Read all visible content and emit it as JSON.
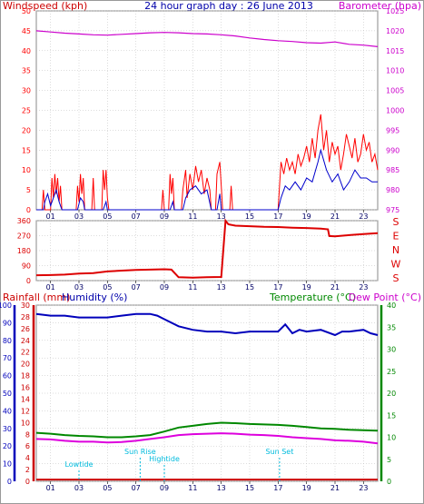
{
  "header": {
    "left_label": "Windspeed (kph)",
    "center_title": "24 hour graph day : 26 June 2013",
    "right_label": "Barometer (hpa)"
  },
  "colors": {
    "wind": "#ff0000",
    "gust_avg": "#0000cc",
    "barometer": "#cc00cc",
    "direction": "#dd0000",
    "humidity": "#0000bb",
    "temperature": "#008800",
    "dewpoint": "#dd00dd",
    "rain": "#cc0000",
    "astro": "#00bbdd",
    "grid": "#bbbbbb"
  },
  "x_ticks": [
    "01",
    "03",
    "05",
    "07",
    "09",
    "11",
    "13",
    "15",
    "17",
    "19",
    "21",
    "23"
  ],
  "chart_data": [
    {
      "type": "line",
      "name": "wind-barometer",
      "left_ticks": [
        "0",
        "5",
        "10",
        "15",
        "20",
        "25",
        "30",
        "35",
        "40",
        "45",
        "50"
      ],
      "right_ticks": [
        "975",
        "980",
        "985",
        "990",
        "995",
        "1000",
        "1005",
        "1010",
        "1015",
        "1020",
        "1025"
      ],
      "ylim_left": [
        0,
        50
      ],
      "ylim_right": [
        975,
        1025
      ],
      "xlim": [
        0,
        24
      ],
      "barometer": [
        [
          0,
          1020.0
        ],
        [
          1,
          1019.7
        ],
        [
          2,
          1019.4
        ],
        [
          3,
          1019.2
        ],
        [
          4,
          1019.0
        ],
        [
          5,
          1018.9
        ],
        [
          6,
          1019.1
        ],
        [
          7,
          1019.3
        ],
        [
          8,
          1019.5
        ],
        [
          9,
          1019.6
        ],
        [
          10,
          1019.5
        ],
        [
          11,
          1019.3
        ],
        [
          12,
          1019.2
        ],
        [
          13,
          1019.0
        ],
        [
          14,
          1018.7
        ],
        [
          15,
          1018.2
        ],
        [
          16,
          1017.8
        ],
        [
          17,
          1017.5
        ],
        [
          18,
          1017.3
        ],
        [
          19,
          1017.0
        ],
        [
          20,
          1016.9
        ],
        [
          21,
          1017.2
        ],
        [
          22,
          1016.6
        ],
        [
          23,
          1016.4
        ],
        [
          24,
          1016.0
        ]
      ],
      "wind_speed": [
        [
          0,
          0
        ],
        [
          0.4,
          0
        ],
        [
          0.5,
          5
        ],
        [
          0.6,
          0
        ],
        [
          1.0,
          0
        ],
        [
          1.1,
          8
        ],
        [
          1.2,
          3
        ],
        [
          1.3,
          9
        ],
        [
          1.4,
          4
        ],
        [
          1.5,
          8
        ],
        [
          1.6,
          2
        ],
        [
          1.7,
          6
        ],
        [
          1.8,
          0
        ],
        [
          2.8,
          0
        ],
        [
          2.9,
          6
        ],
        [
          3.0,
          2
        ],
        [
          3.1,
          9
        ],
        [
          3.2,
          4
        ],
        [
          3.3,
          8
        ],
        [
          3.4,
          0
        ],
        [
          3.9,
          0
        ],
        [
          4.0,
          8
        ],
        [
          4.1,
          0
        ],
        [
          4.6,
          0
        ],
        [
          4.7,
          10
        ],
        [
          4.8,
          5
        ],
        [
          4.9,
          10
        ],
        [
          5.0,
          3
        ],
        [
          5.1,
          0
        ],
        [
          8.8,
          0
        ],
        [
          8.9,
          5
        ],
        [
          9.0,
          0
        ],
        [
          9.3,
          0
        ],
        [
          9.4,
          9
        ],
        [
          9.5,
          4
        ],
        [
          9.6,
          8
        ],
        [
          9.7,
          0
        ],
        [
          10.2,
          0
        ],
        [
          10.3,
          5
        ],
        [
          10.5,
          10
        ],
        [
          10.6,
          3
        ],
        [
          10.8,
          9
        ],
        [
          11.0,
          5
        ],
        [
          11.2,
          11
        ],
        [
          11.4,
          7
        ],
        [
          11.6,
          10
        ],
        [
          11.8,
          4
        ],
        [
          12.0,
          8
        ],
        [
          12.2,
          5
        ],
        [
          12.3,
          0
        ],
        [
          12.6,
          0
        ],
        [
          12.7,
          9
        ],
        [
          12.9,
          12
        ],
        [
          13.0,
          6
        ],
        [
          13.1,
          0
        ],
        [
          13.6,
          0
        ],
        [
          13.7,
          6
        ],
        [
          13.8,
          0
        ],
        [
          17.0,
          0
        ],
        [
          17.1,
          6
        ],
        [
          17.2,
          12
        ],
        [
          17.4,
          9
        ],
        [
          17.6,
          13
        ],
        [
          17.8,
          10
        ],
        [
          18.0,
          12
        ],
        [
          18.2,
          9
        ],
        [
          18.4,
          14
        ],
        [
          18.6,
          11
        ],
        [
          18.8,
          13
        ],
        [
          19.0,
          16
        ],
        [
          19.2,
          12
        ],
        [
          19.4,
          18
        ],
        [
          19.6,
          13
        ],
        [
          19.8,
          20
        ],
        [
          20.0,
          24
        ],
        [
          20.2,
          15
        ],
        [
          20.4,
          20
        ],
        [
          20.6,
          12
        ],
        [
          20.8,
          17
        ],
        [
          21.0,
          14
        ],
        [
          21.2,
          16
        ],
        [
          21.4,
          10
        ],
        [
          21.6,
          14
        ],
        [
          21.8,
          19
        ],
        [
          22.0,
          16
        ],
        [
          22.2,
          13
        ],
        [
          22.4,
          18
        ],
        [
          22.6,
          12
        ],
        [
          22.8,
          14
        ],
        [
          23.0,
          19
        ],
        [
          23.2,
          15
        ],
        [
          23.4,
          17
        ],
        [
          23.6,
          12
        ],
        [
          23.8,
          14
        ],
        [
          24.0,
          10
        ]
      ],
      "gust_avg": [
        [
          0,
          0
        ],
        [
          0.5,
          0
        ],
        [
          0.6,
          2
        ],
        [
          0.8,
          4
        ],
        [
          1.0,
          1
        ],
        [
          1.2,
          3
        ],
        [
          1.4,
          5
        ],
        [
          1.6,
          2
        ],
        [
          1.8,
          0
        ],
        [
          2.9,
          0
        ],
        [
          3.1,
          3
        ],
        [
          3.3,
          2
        ],
        [
          3.4,
          0
        ],
        [
          4.7,
          0
        ],
        [
          4.9,
          2
        ],
        [
          5.0,
          0
        ],
        [
          9.4,
          0
        ],
        [
          9.6,
          2
        ],
        [
          9.7,
          0
        ],
        [
          10.3,
          0
        ],
        [
          10.5,
          3
        ],
        [
          10.8,
          5
        ],
        [
          11.2,
          6
        ],
        [
          11.6,
          4
        ],
        [
          12.0,
          5
        ],
        [
          12.3,
          0
        ],
        [
          12.7,
          0
        ],
        [
          12.9,
          4
        ],
        [
          13.0,
          0
        ],
        [
          17.0,
          0
        ],
        [
          17.2,
          3
        ],
        [
          17.5,
          6
        ],
        [
          17.8,
          5
        ],
        [
          18.2,
          7
        ],
        [
          18.6,
          5
        ],
        [
          19.0,
          8
        ],
        [
          19.4,
          7
        ],
        [
          19.8,
          12
        ],
        [
          20.0,
          15
        ],
        [
          20.4,
          10
        ],
        [
          20.8,
          7
        ],
        [
          21.2,
          9
        ],
        [
          21.6,
          5
        ],
        [
          22.0,
          7
        ],
        [
          22.4,
          10
        ],
        [
          22.8,
          8
        ],
        [
          23.2,
          8
        ],
        [
          23.6,
          7
        ],
        [
          24.0,
          7
        ]
      ]
    },
    {
      "type": "line",
      "name": "wind-direction",
      "left_ticks": [
        "0",
        "90",
        "180",
        "270",
        "360"
      ],
      "right_labels": [
        "S",
        "E",
        "N",
        "W",
        "S"
      ],
      "ylim": [
        0,
        360
      ],
      "xlim": [
        0,
        24
      ],
      "direction": [
        [
          0,
          32
        ],
        [
          1,
          33
        ],
        [
          2,
          36
        ],
        [
          3,
          42
        ],
        [
          4,
          45
        ],
        [
          5,
          55
        ],
        [
          6,
          60
        ],
        [
          7,
          64
        ],
        [
          8,
          66
        ],
        [
          9,
          68
        ],
        [
          9.5,
          66
        ],
        [
          10,
          20
        ],
        [
          11,
          18
        ],
        [
          12,
          20
        ],
        [
          13,
          22
        ],
        [
          13.3,
          360
        ],
        [
          13.5,
          338
        ],
        [
          14,
          330
        ],
        [
          15,
          327
        ],
        [
          16,
          323
        ],
        [
          17,
          322
        ],
        [
          18,
          318
        ],
        [
          19,
          316
        ],
        [
          20,
          312
        ],
        [
          20.5,
          308
        ],
        [
          20.6,
          268
        ],
        [
          21,
          266
        ],
        [
          22,
          273
        ],
        [
          23,
          280
        ],
        [
          24,
          285
        ]
      ]
    },
    {
      "type": "line",
      "name": "rain-humidity-temperature",
      "header_left": "Rainfall (mm)",
      "header_left2": "Humidity (%)",
      "header_right": "Temperature (°C)",
      "header_right2": "Dew Point (°C)",
      "rain_ticks": [
        "0",
        "2",
        "4",
        "6",
        "8",
        "10",
        "12",
        "14",
        "16",
        "18",
        "20",
        "22",
        "24",
        "26",
        "28",
        "30"
      ],
      "humidity_ticks": [
        "0",
        "10",
        "20",
        "30",
        "40",
        "50",
        "60",
        "70",
        "80",
        "90",
        "100"
      ],
      "temp_ticks": [
        "0",
        "5",
        "10",
        "15",
        "20",
        "25",
        "30",
        "35",
        "40"
      ],
      "ylim_rain": [
        0,
        30
      ],
      "ylim_humidity": [
        0,
        100
      ],
      "ylim_temp": [
        0,
        40
      ],
      "xlim": [
        0,
        24
      ],
      "humidity": [
        [
          0,
          95
        ],
        [
          1,
          94
        ],
        [
          2,
          94
        ],
        [
          3,
          93
        ],
        [
          4,
          93
        ],
        [
          5,
          93
        ],
        [
          6,
          94
        ],
        [
          7,
          95
        ],
        [
          8,
          95
        ],
        [
          8.5,
          94
        ],
        [
          9,
          92
        ],
        [
          10,
          88
        ],
        [
          11,
          86
        ],
        [
          12,
          85
        ],
        [
          13,
          85
        ],
        [
          14,
          84
        ],
        [
          15,
          85
        ],
        [
          16,
          85
        ],
        [
          17,
          85
        ],
        [
          17.5,
          89
        ],
        [
          18,
          84
        ],
        [
          18.5,
          86
        ],
        [
          19,
          85
        ],
        [
          20,
          86
        ],
        [
          21,
          83
        ],
        [
          21.5,
          85
        ],
        [
          22,
          85
        ],
        [
          23,
          86
        ],
        [
          23.5,
          84
        ],
        [
          24,
          83
        ]
      ],
      "temperature": [
        [
          0,
          11.0
        ],
        [
          1,
          10.8
        ],
        [
          2,
          10.5
        ],
        [
          3,
          10.3
        ],
        [
          4,
          10.2
        ],
        [
          5,
          10.0
        ],
        [
          6,
          10.0
        ],
        [
          7,
          10.2
        ],
        [
          8,
          10.5
        ],
        [
          9,
          11.3
        ],
        [
          10,
          12.2
        ],
        [
          11,
          12.6
        ],
        [
          12,
          13.0
        ],
        [
          13,
          13.3
        ],
        [
          14,
          13.2
        ],
        [
          15,
          13.0
        ],
        [
          16,
          12.9
        ],
        [
          17,
          12.8
        ],
        [
          18,
          12.6
        ],
        [
          19,
          12.3
        ],
        [
          20,
          12.0
        ],
        [
          21,
          11.9
        ],
        [
          22,
          11.7
        ],
        [
          23,
          11.6
        ],
        [
          24,
          11.5
        ]
      ],
      "dewpoint": [
        [
          0,
          9.6
        ],
        [
          1,
          9.5
        ],
        [
          2,
          9.2
        ],
        [
          3,
          9.0
        ],
        [
          4,
          9.0
        ],
        [
          5,
          8.8
        ],
        [
          6,
          8.9
        ],
        [
          7,
          9.2
        ],
        [
          8,
          9.6
        ],
        [
          9,
          10.0
        ],
        [
          10,
          10.5
        ],
        [
          11,
          10.7
        ],
        [
          12,
          10.8
        ],
        [
          13,
          10.9
        ],
        [
          14,
          10.8
        ],
        [
          15,
          10.6
        ],
        [
          16,
          10.5
        ],
        [
          17,
          10.3
        ],
        [
          18,
          10.0
        ],
        [
          19,
          9.8
        ],
        [
          20,
          9.6
        ],
        [
          21,
          9.3
        ],
        [
          22,
          9.2
        ],
        [
          23,
          9.0
        ],
        [
          24,
          8.6
        ]
      ],
      "rain": [
        [
          0,
          0.3
        ],
        [
          24,
          0.3
        ]
      ],
      "annotations": [
        {
          "label": "Lowtide",
          "x": 3.0
        },
        {
          "label": "Sun Rise",
          "x": 7.3
        },
        {
          "label": "Hightide",
          "x": 9.0
        },
        {
          "label": "Sun Set",
          "x": 17.1
        }
      ]
    }
  ]
}
